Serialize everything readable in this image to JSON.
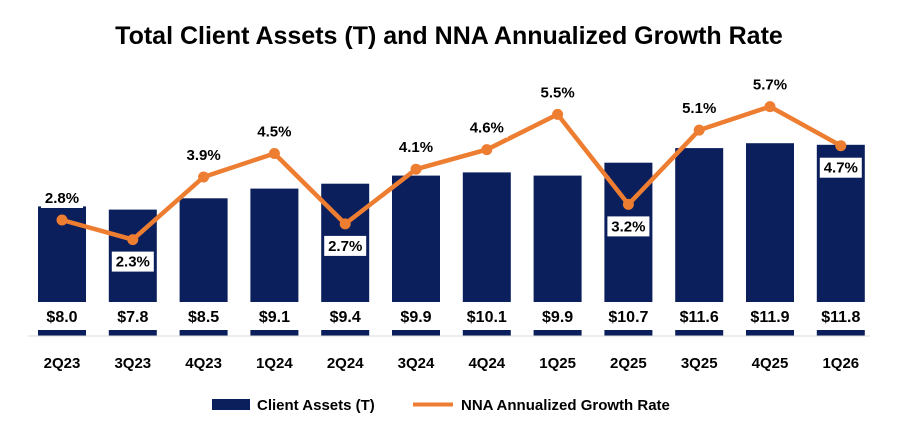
{
  "chart_data": {
    "type": "bar",
    "title": "Total Client Assets (T) and NNA Annualized Growth Rate",
    "categories": [
      "2Q23",
      "3Q23",
      "4Q23",
      "1Q24",
      "2Q24",
      "3Q24",
      "4Q24",
      "1Q25",
      "2Q25",
      "3Q25",
      "4Q25",
      "1Q26"
    ],
    "series": [
      {
        "name": "Client Assets (T)",
        "type": "bar",
        "values": [
          8.0,
          7.8,
          8.5,
          9.1,
          9.4,
          9.9,
          10.1,
          9.9,
          10.7,
          11.6,
          11.9,
          11.8
        ],
        "labels": [
          "$8.0",
          "$7.8",
          "$8.5",
          "$9.1",
          "$9.4",
          "$9.9",
          "$10.1",
          "$9.9",
          "$10.7",
          "$11.6",
          "$11.9",
          "$11.8"
        ],
        "color": "#0a1f5c"
      },
      {
        "name": "NNA Annualized Growth Rate",
        "type": "line",
        "values": [
          2.8,
          2.3,
          3.9,
          4.5,
          2.7,
          4.1,
          4.6,
          5.5,
          3.2,
          5.1,
          5.7,
          4.7
        ],
        "labels": [
          "2.8%",
          "2.3%",
          "3.9%",
          "4.5%",
          "2.7%",
          "4.1%",
          "4.6%",
          "5.5%",
          "3.2%",
          "5.1%",
          "5.7%",
          "4.7%"
        ],
        "color": "#ed7d31"
      }
    ],
    "xlabel": "",
    "ylabel": "",
    "legend_position": "bottom",
    "grid": false
  }
}
